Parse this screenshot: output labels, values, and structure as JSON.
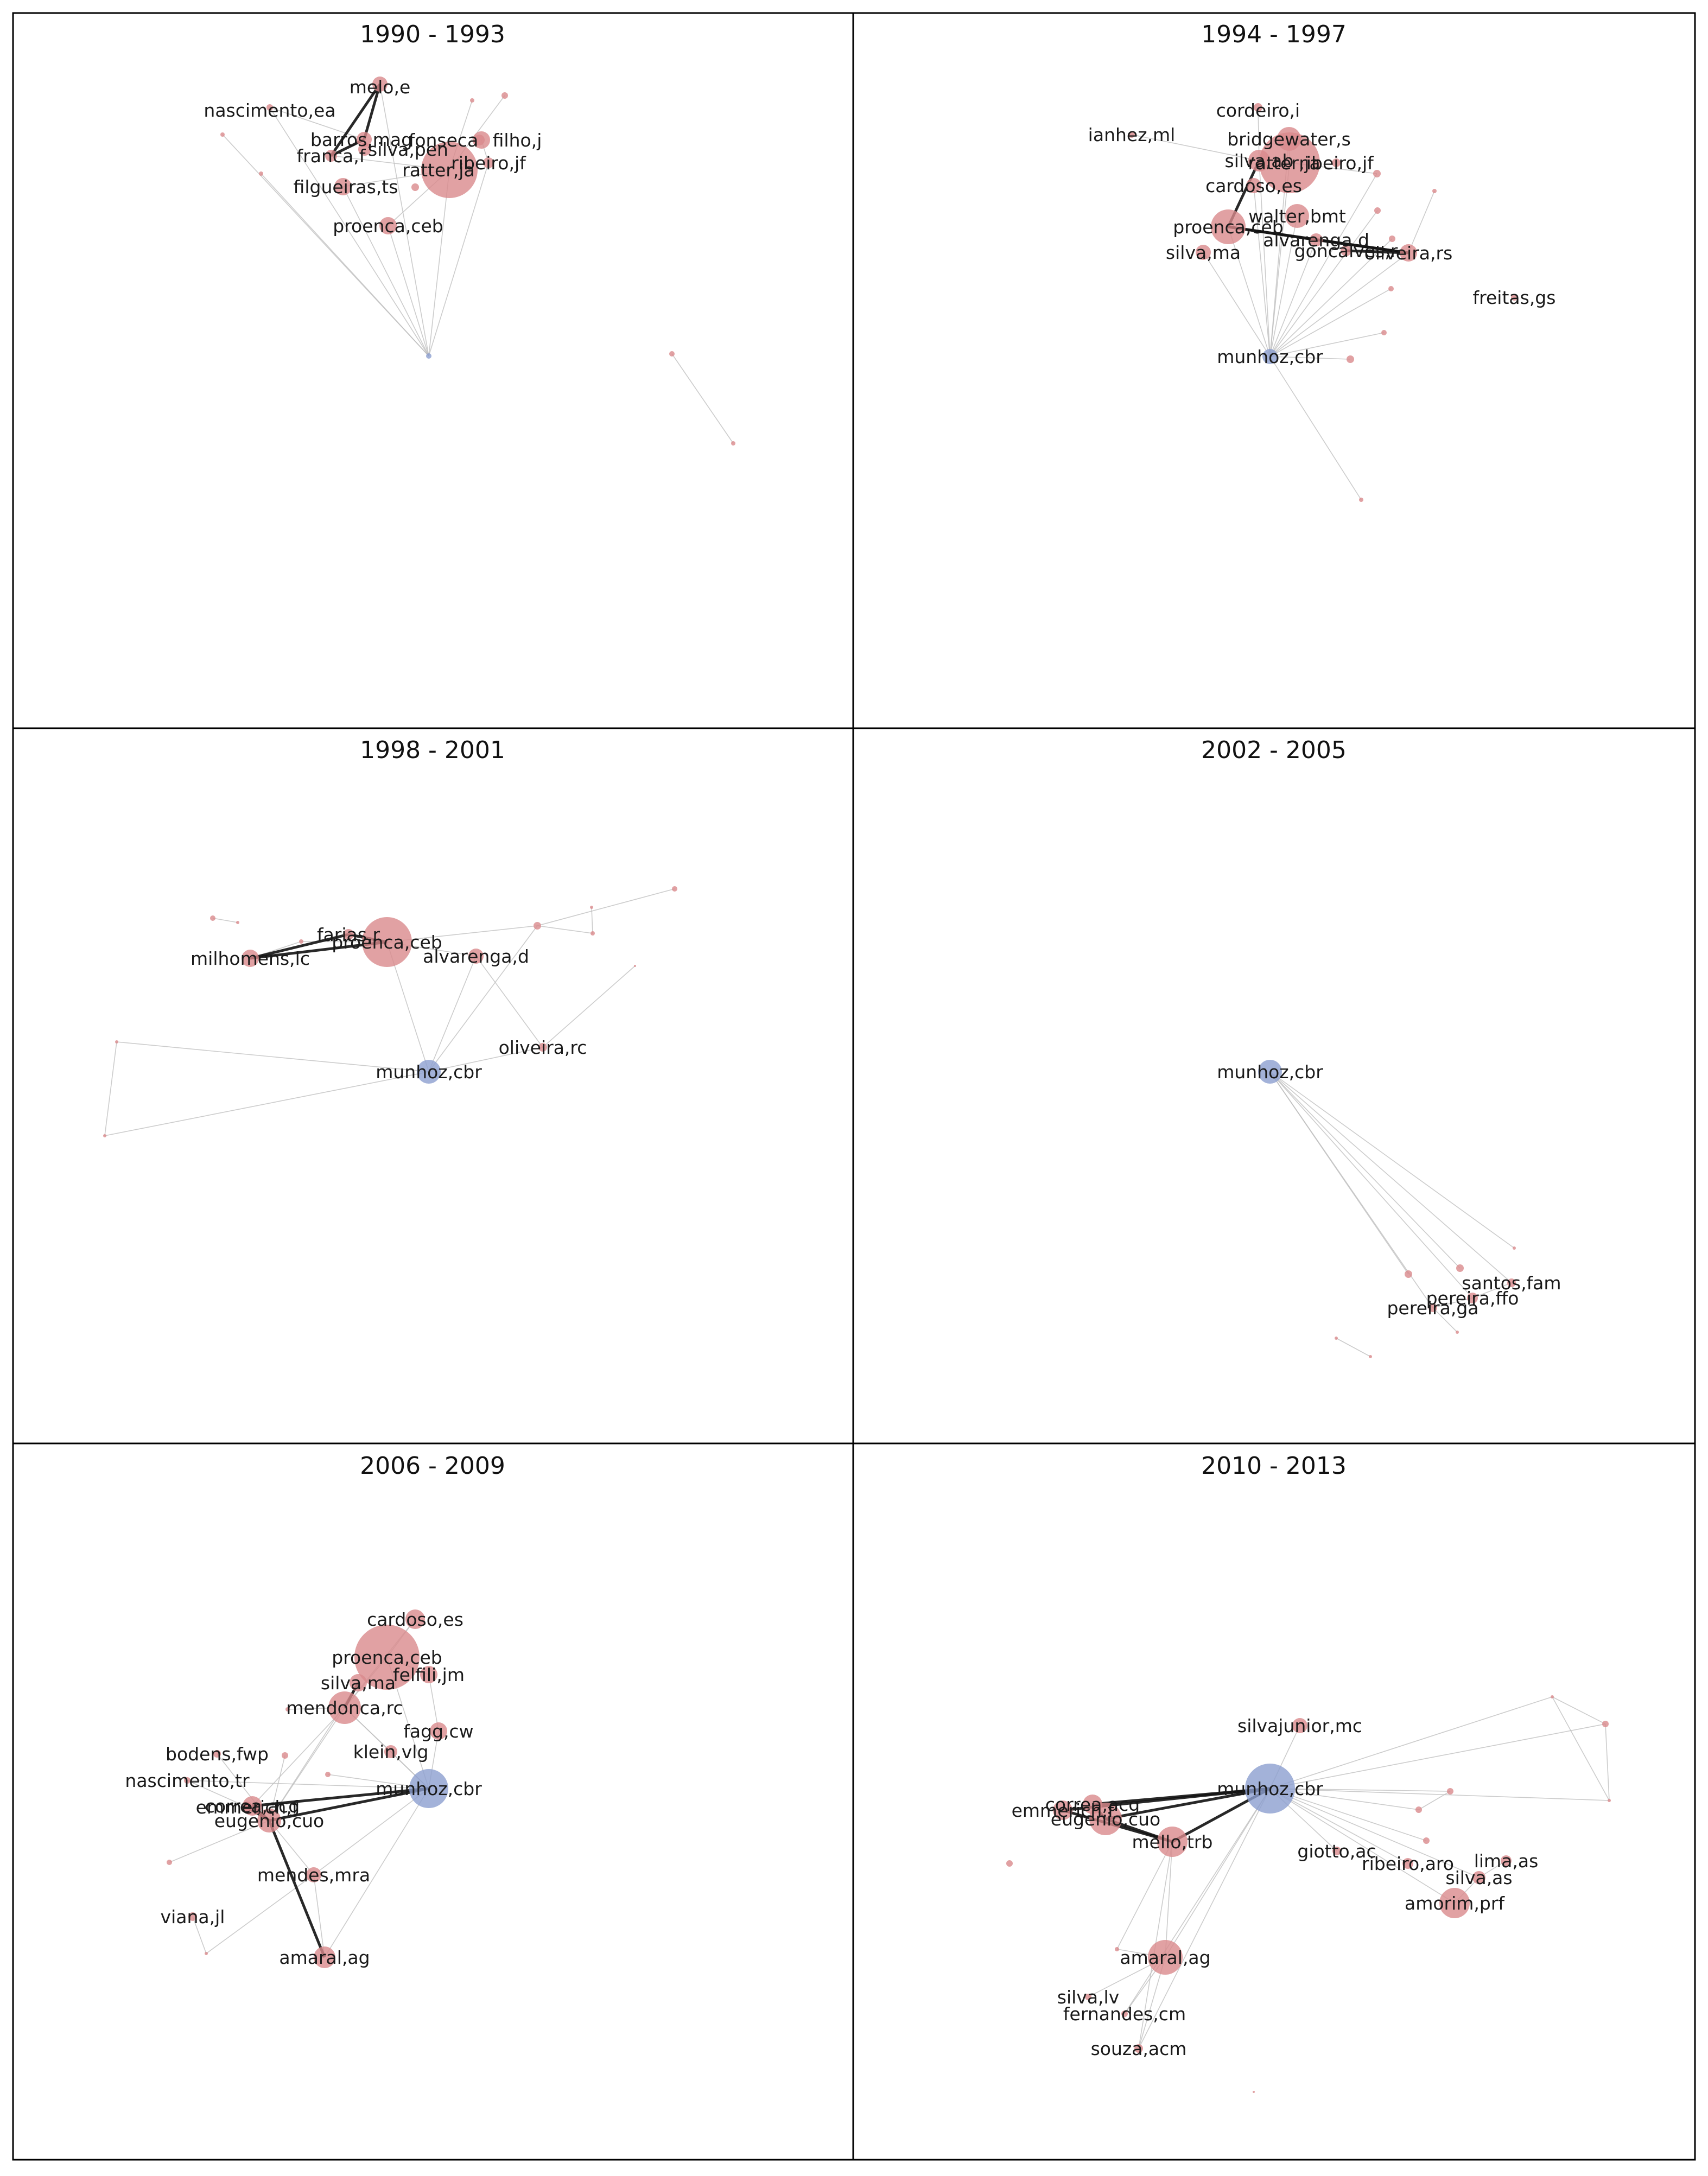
{
  "colors": {
    "author_node": "#d9898c",
    "focus_node": "#8c9fcf",
    "strong_edge": "#111111",
    "weak_edge": "#bbbbbb"
  },
  "panels": [
    {
      "title": "1990 - 1993",
      "labels": [
        "melo,e",
        "nascimento,ea",
        "barros,mag",
        "fonseca",
        "filho,j",
        "silva,pen",
        "franca,f",
        "ratter,ja",
        "ribeiro,jf",
        "filgueiras,ts",
        "proenca,ceb"
      ]
    },
    {
      "title": "1994 - 1997",
      "labels": [
        "cordeiro,i",
        "ianhez,ml",
        "bridgewater,s",
        "silva,ab",
        "ratter,ja",
        "ribeiro,jf",
        "cardoso,es",
        "walter,bmt",
        "proenca,ceb",
        "alvarenga,d",
        "silva,ma",
        "goncalves,r",
        "oliveira,rs",
        "freitas,gs",
        "munhoz,cbr"
      ]
    },
    {
      "title": "1998 - 2001",
      "labels": [
        "farias,r",
        "proenca,ceb",
        "milhomens,lc",
        "alvarenga,d",
        "oliveira,rc",
        "munhoz,cbr"
      ]
    },
    {
      "title": "2002 - 2005",
      "labels": [
        "munhoz,cbr",
        "santos,fam",
        "pereira,ffo",
        "pereira,ga"
      ]
    },
    {
      "title": "2006 - 2009",
      "labels": [
        "cardoso,es",
        "proenca,ceb",
        "felfili,jm",
        "silva,ma",
        "mendonca,rc",
        "fagg,cw",
        "bodens,fwp",
        "klein,vlg",
        "nascimento,tr",
        "munhoz,cbr",
        "correa,acg",
        "emmerich,f",
        "eugenio,cuo",
        "mendes,mra",
        "viana,jl",
        "amaral,ag"
      ]
    },
    {
      "title": "2010 - 2013",
      "labels": [
        "silvajunior,mc",
        "munhoz,cbr",
        "correa,acg",
        "emmerich,f",
        "eugenio,cuo",
        "mello,trb",
        "giotto,ac",
        "ribeiro,aro",
        "lima,as",
        "silva,as",
        "amorim,prf",
        "amaral,ag",
        "silva,lv",
        "fernandes,cm",
        "souza,acm"
      ]
    }
  ]
}
